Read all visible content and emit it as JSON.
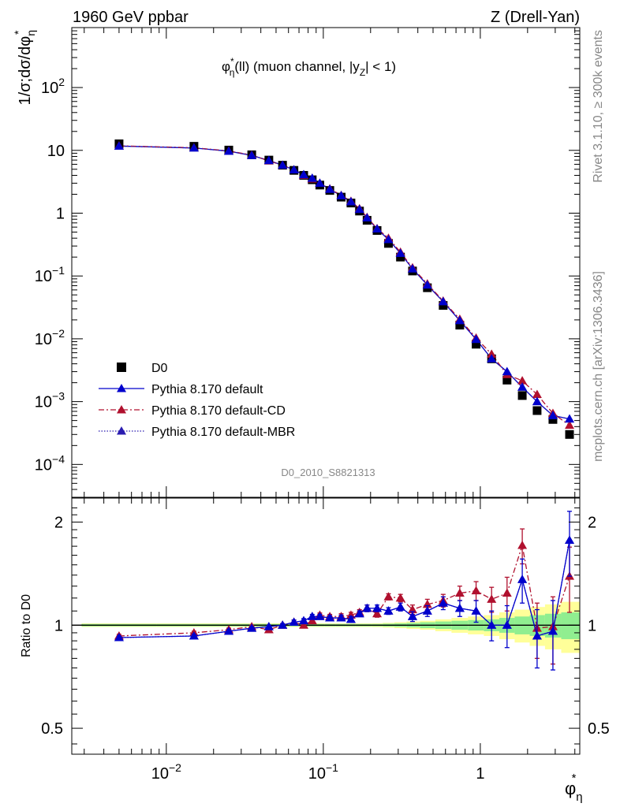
{
  "header": {
    "left": "1960 GeV ppbar",
    "right": "Z (Drell-Yan)"
  },
  "side_label_top": "Rivet 3.1.10, ≥ 300k events",
  "side_label_bottom": "mcplots.cern.ch [arXiv:1306.3436]",
  "analysis_tag": "D0_2010_S8821313",
  "chart_data": [
    {
      "type": "scatter",
      "title": "φ*η(ll) (muon channel, |yZ| < 1)",
      "title_parts": {
        "phi": "φ",
        "star": "*",
        "eta": "η",
        "rest": "(ll) (muon channel, |y",
        "sub": "Z",
        "end": "| < 1)"
      },
      "ylabel_parts": {
        "a": "1/σ;dσ/dφ",
        "sub": "η",
        "star": "*"
      },
      "xlabel_parts": {
        "phi": "φ",
        "sub": "η",
        "star": "*"
      },
      "xscale": "log",
      "yscale": "log",
      "xlim": [
        0.0025,
        4.3
      ],
      "ylim": [
        3e-05,
        900
      ],
      "xticks": [
        {
          "value": 0.01,
          "base": "10",
          "exp": "−2"
        },
        {
          "value": 0.1,
          "base": "10",
          "exp": "−1"
        },
        {
          "value": 1,
          "base": "1",
          "exp": ""
        }
      ],
      "yticks": [
        {
          "value": 0.0001,
          "base": "10",
          "exp": "−4"
        },
        {
          "value": 0.001,
          "base": "10",
          "exp": "−3"
        },
        {
          "value": 0.01,
          "base": "10",
          "exp": "−2"
        },
        {
          "value": 0.1,
          "base": "10",
          "exp": "−1"
        },
        {
          "value": 1,
          "base": "1",
          "exp": ""
        },
        {
          "value": 10,
          "base": "10",
          "exp": ""
        },
        {
          "value": 100,
          "base": "10",
          "exp": "2"
        }
      ],
      "legend_position": "bottom-left",
      "x": [
        0.005,
        0.015,
        0.025,
        0.035,
        0.045,
        0.055,
        0.065,
        0.075,
        0.085,
        0.095,
        0.11,
        0.13,
        0.15,
        0.17,
        0.19,
        0.22,
        0.26,
        0.31,
        0.37,
        0.46,
        0.58,
        0.74,
        0.94,
        1.18,
        1.48,
        1.85,
        2.3,
        2.9,
        3.7
      ],
      "series": [
        {
          "name": "D0",
          "marker": "square",
          "color": "#000000",
          "values": [
            12.7,
            11.6,
            10.1,
            8.5,
            7.0,
            5.8,
            4.8,
            4.0,
            3.4,
            2.8,
            2.3,
            1.8,
            1.45,
            1.08,
            0.77,
            0.53,
            0.33,
            0.2,
            0.12,
            0.065,
            0.034,
            0.0165,
            0.0082,
            0.0048,
            0.0022,
            0.00125,
            0.00072,
            0.00052,
            0.0003
          ]
        },
        {
          "name": "Pythia 8.170 default",
          "marker": "triangle",
          "line": "solid",
          "color": "#0000cc",
          "values": [
            11.7,
            10.9,
            9.7,
            8.3,
            6.9,
            5.8,
            4.9,
            4.1,
            3.6,
            3.0,
            2.4,
            1.9,
            1.52,
            1.15,
            0.84,
            0.56,
            0.38,
            0.23,
            0.13,
            0.072,
            0.039,
            0.0195,
            0.0098,
            0.0048,
            0.003,
            0.0017,
            0.001,
            0.0006,
            0.00053
          ]
        },
        {
          "name": "Pythia 8.170 default-CD",
          "marker": "triangle",
          "line": "dashdot",
          "color": "#b0102e",
          "values": [
            11.8,
            11.0,
            9.8,
            8.4,
            6.8,
            5.8,
            4.9,
            4.0,
            3.5,
            3.0,
            2.45,
            1.92,
            1.55,
            1.18,
            0.86,
            0.57,
            0.4,
            0.24,
            0.135,
            0.075,
            0.04,
            0.0205,
            0.0103,
            0.0057,
            0.0027,
            0.00215,
            0.0013,
            0.00065,
            0.00042
          ]
        },
        {
          "name": "Pythia 8.170 default-MBR",
          "marker": "triangle",
          "line": "dotted",
          "color": "#2a1cb0",
          "values": [
            11.7,
            10.9,
            9.7,
            8.3,
            6.9,
            5.8,
            4.9,
            4.1,
            3.6,
            3.0,
            2.4,
            1.9,
            1.52,
            1.15,
            0.84,
            0.56,
            0.38,
            0.23,
            0.13,
            0.072,
            0.039,
            0.0195,
            0.0098,
            0.0048,
            0.003,
            0.0017,
            0.001,
            0.0006,
            0.00053
          ]
        }
      ]
    },
    {
      "type": "scatter",
      "ylabel": "Ratio to D0",
      "xscale": "log",
      "yscale": "log",
      "xlim": [
        0.0025,
        4.3
      ],
      "ylim": [
        0.42,
        2.35
      ],
      "yticks": [
        {
          "value": 0.5,
          "label": "0.5"
        },
        {
          "value": 1,
          "label": "1"
        },
        {
          "value": 2,
          "label": "2"
        }
      ],
      "x": [
        0.005,
        0.015,
        0.025,
        0.035,
        0.045,
        0.055,
        0.065,
        0.075,
        0.085,
        0.095,
        0.11,
        0.13,
        0.15,
        0.17,
        0.19,
        0.22,
        0.26,
        0.31,
        0.37,
        0.46,
        0.58,
        0.74,
        0.94,
        1.18,
        1.48,
        1.85,
        2.3,
        2.9,
        3.7
      ],
      "bands": {
        "inner": [
          0.008,
          0.008,
          0.008,
          0.008,
          0.008,
          0.008,
          0.008,
          0.008,
          0.008,
          0.008,
          0.008,
          0.008,
          0.008,
          0.008,
          0.008,
          0.008,
          0.01,
          0.012,
          0.015,
          0.02,
          0.025,
          0.03,
          0.035,
          0.04,
          0.05,
          0.06,
          0.07,
          0.08,
          0.09
        ],
        "outer": [
          0.012,
          0.012,
          0.012,
          0.012,
          0.012,
          0.012,
          0.012,
          0.012,
          0.012,
          0.012,
          0.012,
          0.012,
          0.012,
          0.012,
          0.012,
          0.013,
          0.016,
          0.02,
          0.025,
          0.03,
          0.04,
          0.05,
          0.06,
          0.07,
          0.09,
          0.11,
          0.13,
          0.15,
          0.17
        ]
      },
      "series": [
        {
          "name": "Pythia 8.170 default",
          "color": "#0000cc",
          "values": [
            0.92,
            0.93,
            0.96,
            0.98,
            0.99,
            1.0,
            1.02,
            1.03,
            1.06,
            1.06,
            1.05,
            1.05,
            1.04,
            1.08,
            1.12,
            1.12,
            1.1,
            1.13,
            1.06,
            1.1,
            1.16,
            1.12,
            1.1,
            1.0,
            1.0,
            1.36,
            0.93,
            0.96,
            1.77
          ],
          "errors": [
            0.01,
            0.01,
            0.01,
            0.01,
            0.01,
            0.01,
            0.015,
            0.015,
            0.015,
            0.015,
            0.015,
            0.02,
            0.02,
            0.02,
            0.025,
            0.025,
            0.025,
            0.03,
            0.035,
            0.04,
            0.05,
            0.06,
            0.08,
            0.1,
            0.14,
            0.2,
            0.18,
            0.22,
            0.38
          ]
        },
        {
          "name": "Pythia 8.170 default-CD",
          "color": "#b0102e",
          "values": [
            0.93,
            0.95,
            0.97,
            0.99,
            0.97,
            1.0,
            1.02,
            1.0,
            1.03,
            1.07,
            1.06,
            1.06,
            1.07,
            1.09,
            1.12,
            1.08,
            1.21,
            1.2,
            1.11,
            1.15,
            1.18,
            1.24,
            1.26,
            1.19,
            1.24,
            1.71,
            0.98,
            0.99,
            1.39
          ],
          "errors": [
            0.01,
            0.01,
            0.01,
            0.01,
            0.01,
            0.01,
            0.015,
            0.015,
            0.015,
            0.015,
            0.015,
            0.02,
            0.02,
            0.02,
            0.025,
            0.025,
            0.025,
            0.03,
            0.035,
            0.04,
            0.05,
            0.06,
            0.08,
            0.1,
            0.14,
            0.2,
            0.18,
            0.22,
            0.3
          ]
        },
        {
          "name": "Pythia 8.170 default-MBR",
          "color": "#2a1cb0",
          "values": [
            0.92,
            0.93,
            0.96,
            0.98,
            0.99,
            1.0,
            1.02,
            1.03,
            1.06,
            1.06,
            1.05,
            1.05,
            1.04,
            1.08,
            1.12,
            1.12,
            1.1,
            1.13,
            1.06,
            1.1,
            1.16,
            1.12,
            1.1,
            1.0,
            1.0,
            1.36,
            0.93,
            0.96,
            1.77
          ],
          "errors": [
            0,
            0,
            0,
            0,
            0,
            0,
            0,
            0,
            0,
            0,
            0,
            0,
            0,
            0,
            0,
            0,
            0,
            0,
            0,
            0,
            0,
            0,
            0,
            0,
            0,
            0,
            0,
            0,
            0
          ]
        }
      ]
    }
  ]
}
